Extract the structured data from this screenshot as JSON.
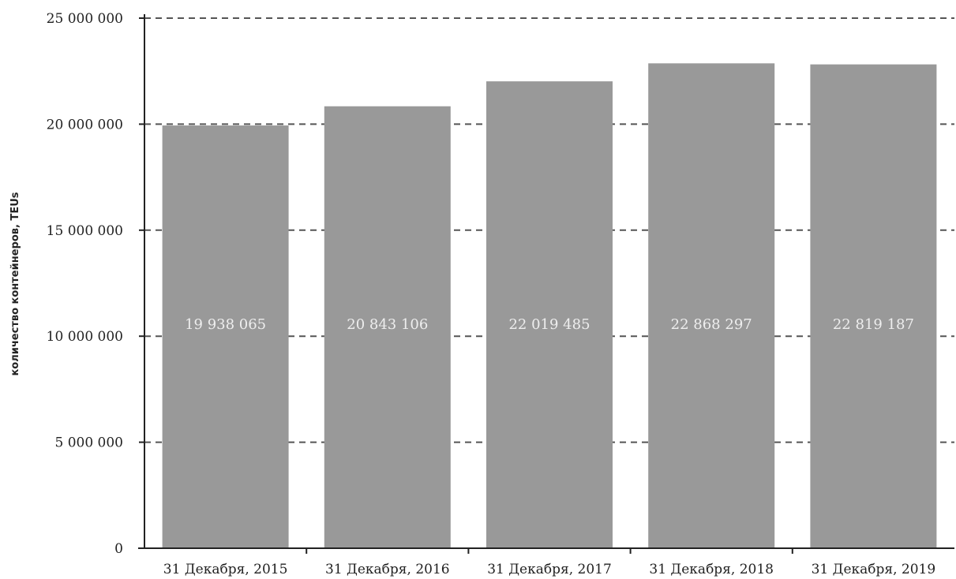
{
  "chart_data": {
    "type": "bar",
    "categories": [
      "31 Декабря, 2015",
      "31 Декабря, 2016",
      "31 Декабря, 2017",
      "31 Декабря, 2018",
      "31 Декабря, 2019"
    ],
    "values": [
      19938065,
      20843106,
      22019485,
      22868297,
      22819187
    ],
    "value_labels": [
      "19 938 065",
      "20 843 106",
      "22 019 485",
      "22 868 297",
      "22 819 187"
    ],
    "title": "",
    "xlabel": "",
    "ylabel": "количество контейнеров, TEUs",
    "ylim": [
      0,
      25000000
    ],
    "yticks": [
      0,
      5000000,
      10000000,
      15000000,
      20000000,
      25000000
    ],
    "ytick_labels": [
      "0",
      "5 000 000",
      "10 000 000",
      "15 000 000",
      "20 000 000",
      "25 000 000"
    ],
    "grid": "horizontal dashed",
    "legend": "none",
    "bar_color": "#999999",
    "label_color": "#eeeeee",
    "grid_color": "#555555"
  }
}
